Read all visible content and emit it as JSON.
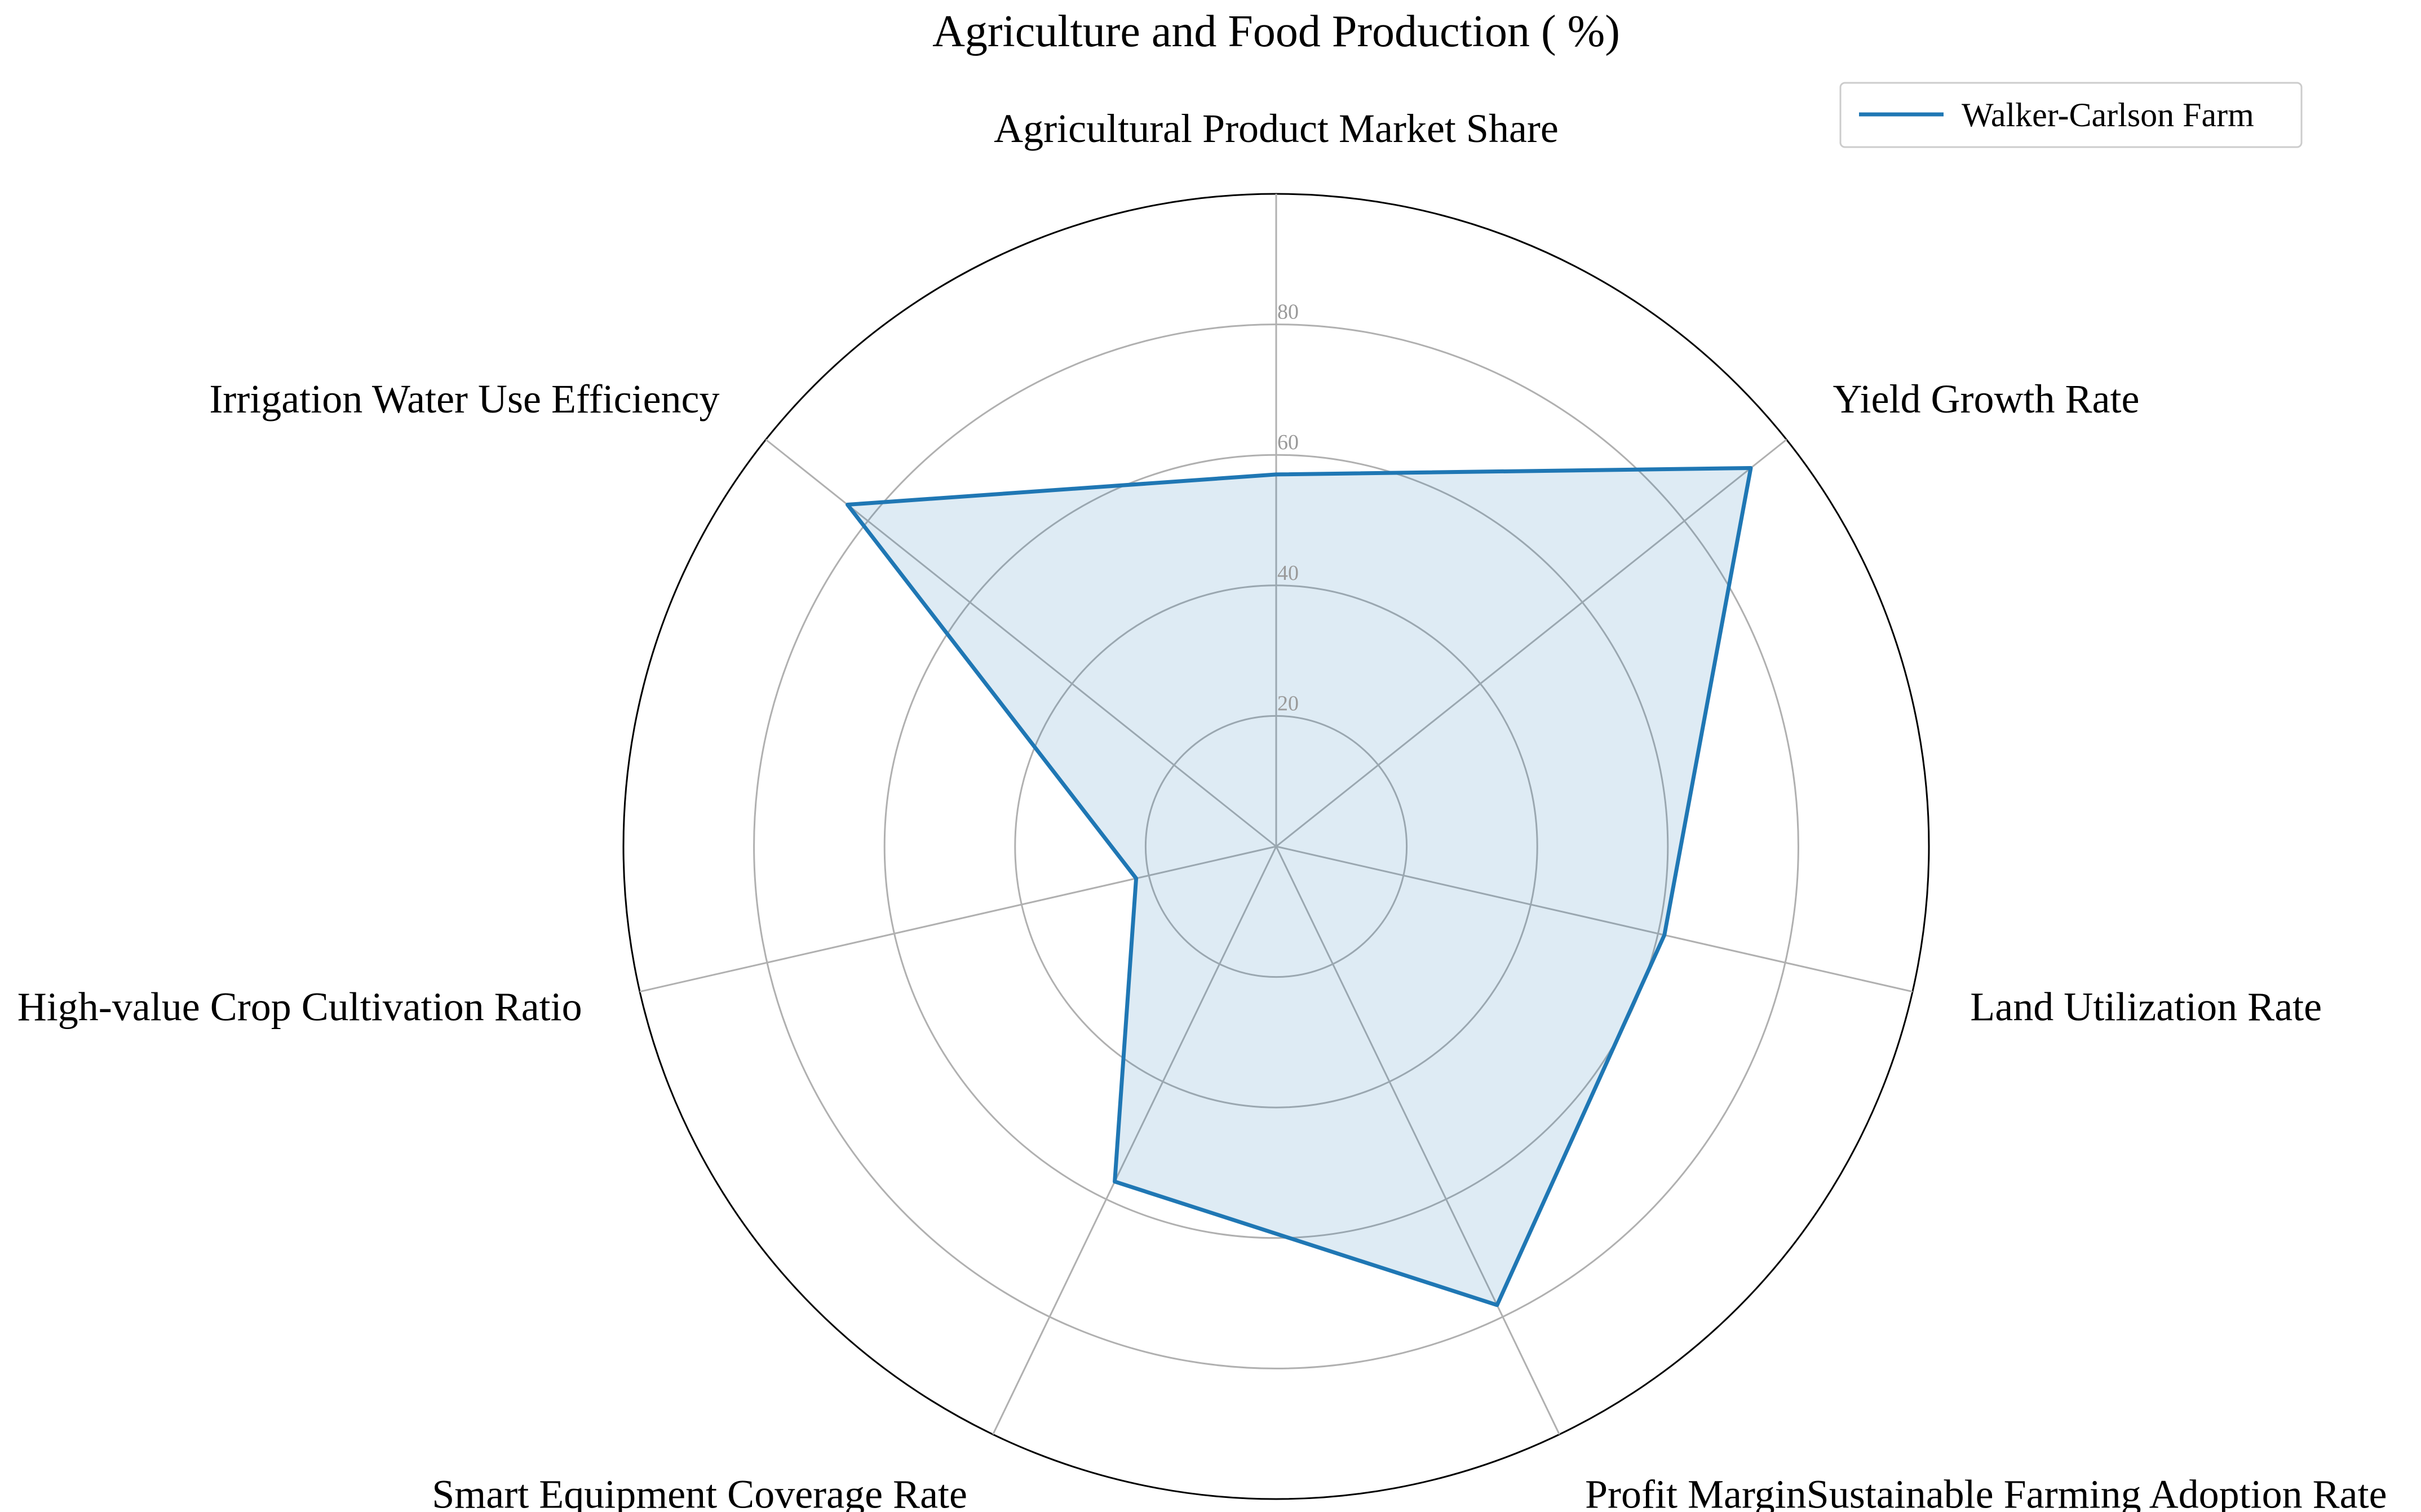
{
  "chart_data": {
    "type": "radar",
    "title": "Agriculture and Food Production ( %)",
    "categories": [
      "Agricultural Product Market Share",
      "Yield Growth Rate",
      "Land Utilization Rate",
      "Profit MarginSustainable Farming Adoption Rate",
      "Smart Equipment Coverage Rate",
      "High-value Crop Cultivation Ratio",
      "Irrigation Water Use Efficiency"
    ],
    "series": [
      {
        "name": "Walker-Carlson Farm",
        "values": [
          57,
          93,
          61,
          78,
          57,
          22,
          84
        ],
        "color": "#1f77b4"
      }
    ],
    "rmax": 100,
    "ticks": [
      20,
      40,
      60,
      80
    ],
    "tick_labels": [
      "20",
      "40",
      "60",
      "80"
    ],
    "grid": true,
    "legend_position": "top-right"
  }
}
